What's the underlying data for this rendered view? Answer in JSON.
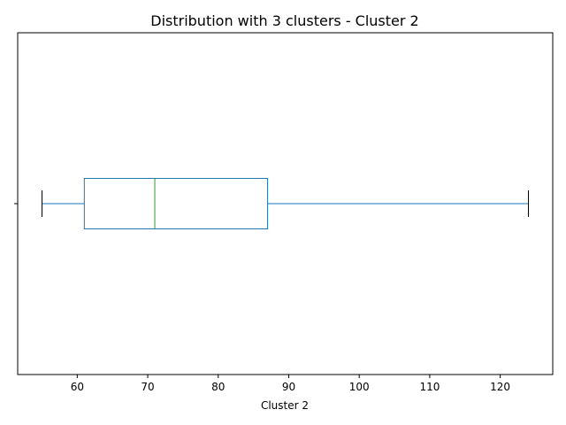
{
  "chart_data": {
    "type": "box",
    "title": "Distribution with 3 clusters - Cluster 2",
    "xlabel": "Cluster 2",
    "ylabel": "",
    "orientation": "horizontal",
    "xlim": [
      51.55,
      127.45
    ],
    "xticks": [
      60,
      70,
      80,
      90,
      100,
      110,
      120
    ],
    "grid": false,
    "series": [
      {
        "whisker_low": 55,
        "q1": 61,
        "median": 71,
        "q3": 87,
        "whisker_high": 124
      }
    ],
    "colors": {
      "box": "#1f77b4",
      "median": "#2ca02c",
      "whisker": "#1f77b4",
      "cap": "#000000",
      "axes": "#000000"
    }
  }
}
